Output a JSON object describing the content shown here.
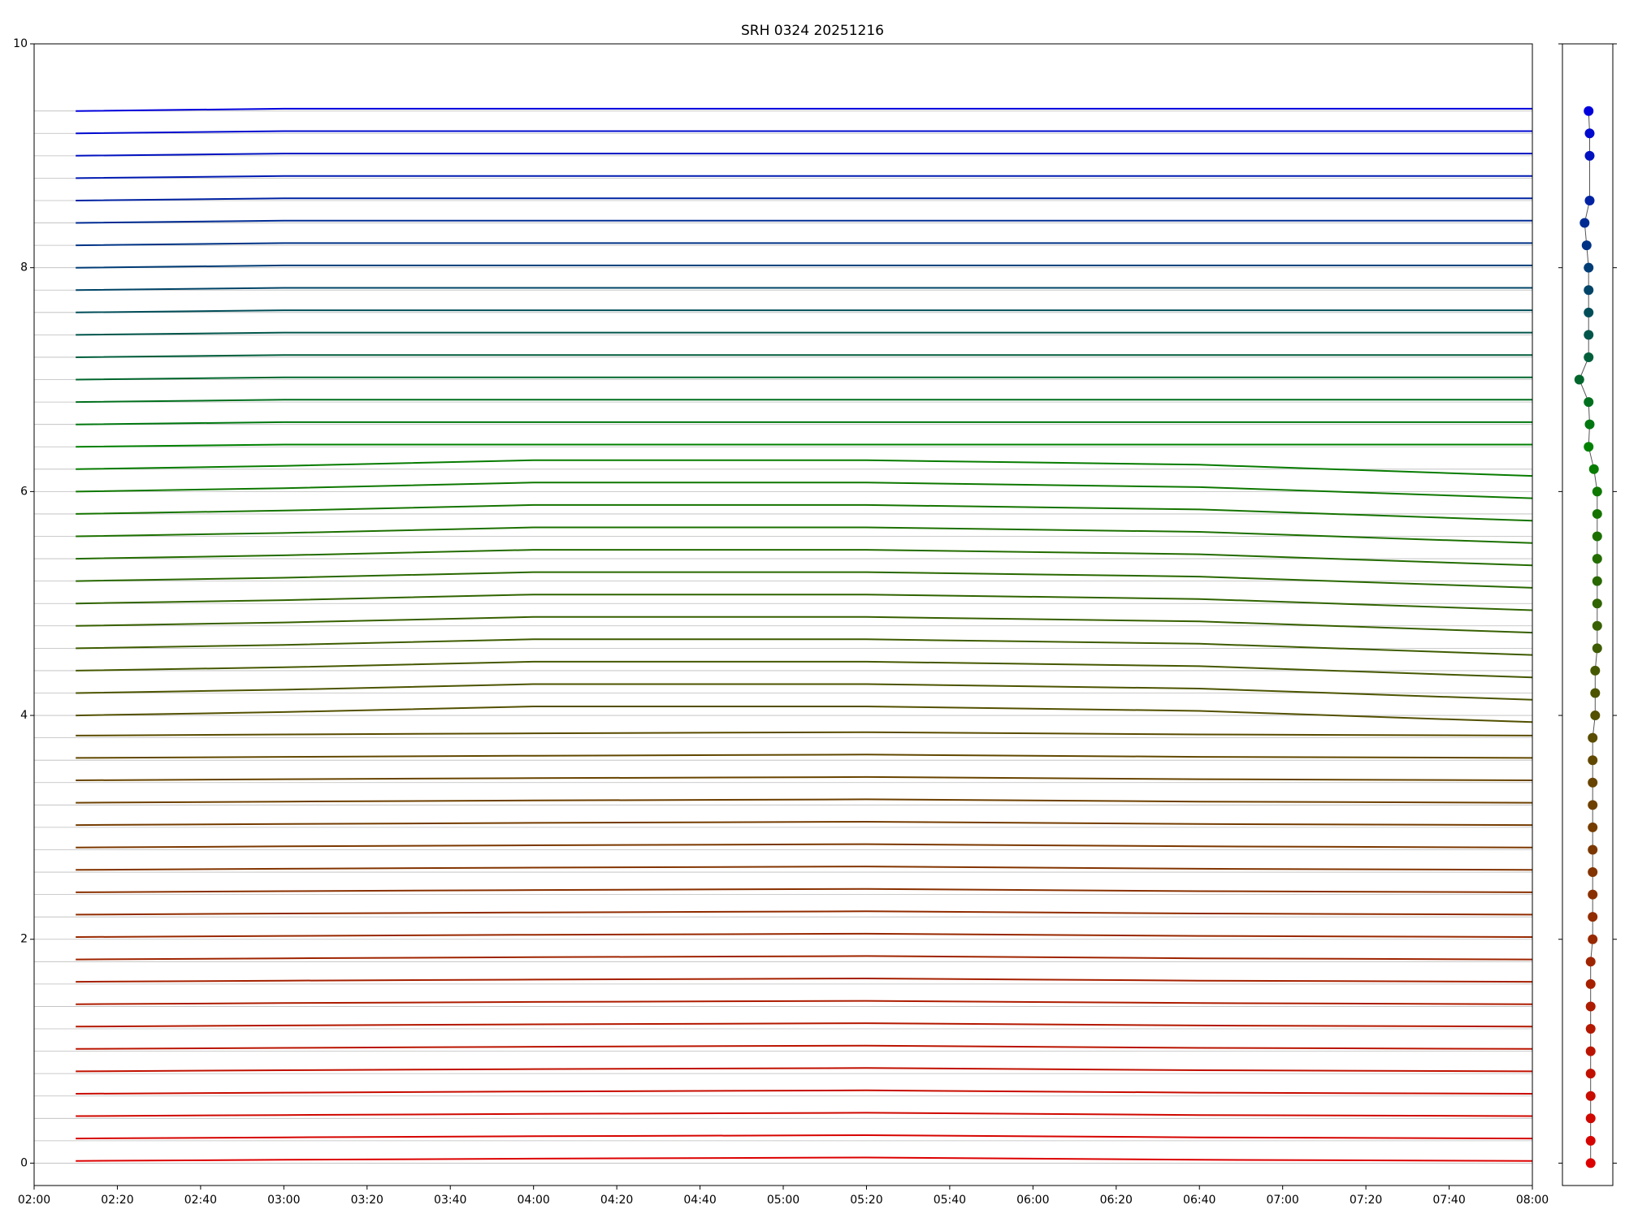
{
  "chart_data": [
    {
      "type": "line",
      "title": "SRH 0324 20251216",
      "xlim": [
        "02:00",
        "08:00"
      ],
      "xticks": [
        "02:00",
        "02:20",
        "02:40",
        "03:00",
        "03:20",
        "03:40",
        "04:00",
        "04:20",
        "04:40",
        "05:00",
        "05:20",
        "05:40",
        "06:00",
        "06:20",
        "06:40",
        "07:00",
        "07:20",
        "07:40",
        "08:00"
      ],
      "ylim": [
        -0.2,
        10
      ],
      "yticks": [
        0,
        2,
        4,
        6,
        8,
        10
      ],
      "baselines": [
        0,
        0.2,
        0.4,
        0.6,
        0.8,
        1,
        1.2,
        1.4,
        1.6,
        1.8,
        2,
        2.2,
        2.4,
        2.6,
        2.8,
        3,
        3.2,
        3.4,
        3.6,
        3.8,
        4,
        4.2,
        4.4,
        4.6,
        4.8,
        5,
        5.2,
        5.4,
        5.6,
        5.8,
        6,
        6.2,
        6.4,
        6.6,
        6.8,
        7,
        7.2,
        7.4,
        7.6,
        7.8,
        8,
        8.2,
        8.4,
        8.6,
        8.8,
        9,
        9.2,
        9.4
      ],
      "baseline_color": "#bbbbbb",
      "x": [
        "02:10",
        "03:00",
        "04:00",
        "05:20",
        "06:40",
        "08:00"
      ],
      "series": [
        {
          "color": "#dd0000",
          "values": [
            0.02,
            0.03,
            0.04,
            0.05,
            0.03,
            0.02
          ]
        },
        {
          "color": "#d60400",
          "values": [
            0.22,
            0.23,
            0.24,
            0.25,
            0.23,
            0.22
          ]
        },
        {
          "color": "#cf0800",
          "values": [
            0.42,
            0.43,
            0.44,
            0.45,
            0.43,
            0.42
          ]
        },
        {
          "color": "#c80c00",
          "values": [
            0.62,
            0.63,
            0.64,
            0.65,
            0.63,
            0.62
          ]
        },
        {
          "color": "#c11000",
          "values": [
            0.82,
            0.83,
            0.84,
            0.85,
            0.83,
            0.82
          ]
        },
        {
          "color": "#ba1400",
          "values": [
            1.02,
            1.03,
            1.04,
            1.05,
            1.03,
            1.02
          ]
        },
        {
          "color": "#b41800",
          "values": [
            1.22,
            1.23,
            1.24,
            1.25,
            1.23,
            1.22
          ]
        },
        {
          "color": "#ad1c00",
          "values": [
            1.42,
            1.43,
            1.44,
            1.45,
            1.43,
            1.42
          ]
        },
        {
          "color": "#a62000",
          "values": [
            1.62,
            1.63,
            1.64,
            1.65,
            1.63,
            1.62
          ]
        },
        {
          "color": "#9f2400",
          "values": [
            1.82,
            1.83,
            1.84,
            1.85,
            1.83,
            1.82
          ]
        },
        {
          "color": "#982800",
          "values": [
            2.02,
            2.03,
            2.04,
            2.05,
            2.03,
            2.02
          ]
        },
        {
          "color": "#912c00",
          "values": [
            2.22,
            2.23,
            2.24,
            2.25,
            2.23,
            2.22
          ]
        },
        {
          "color": "#8a3000",
          "values": [
            2.42,
            2.43,
            2.44,
            2.45,
            2.43,
            2.42
          ]
        },
        {
          "color": "#833400",
          "values": [
            2.62,
            2.63,
            2.64,
            2.65,
            2.63,
            2.62
          ]
        },
        {
          "color": "#7c3800",
          "values": [
            2.82,
            2.83,
            2.84,
            2.85,
            2.83,
            2.82
          ]
        },
        {
          "color": "#753c00",
          "values": [
            3.02,
            3.03,
            3.04,
            3.05,
            3.03,
            3.02
          ]
        },
        {
          "color": "#6e4000",
          "values": [
            3.22,
            3.23,
            3.24,
            3.25,
            3.23,
            3.22
          ]
        },
        {
          "color": "#684400",
          "values": [
            3.42,
            3.43,
            3.44,
            3.45,
            3.43,
            3.42
          ]
        },
        {
          "color": "#614800",
          "values": [
            3.62,
            3.63,
            3.64,
            3.65,
            3.63,
            3.62
          ]
        },
        {
          "color": "#5a4c00",
          "values": [
            3.82,
            3.83,
            3.84,
            3.85,
            3.83,
            3.82
          ]
        },
        {
          "color": "#535000",
          "values": [
            4.0,
            4.03,
            4.08,
            4.08,
            4.04,
            3.94
          ]
        },
        {
          "color": "#4c5400",
          "values": [
            4.2,
            4.23,
            4.28,
            4.28,
            4.24,
            4.14
          ]
        },
        {
          "color": "#455800",
          "values": [
            4.4,
            4.43,
            4.48,
            4.48,
            4.44,
            4.34
          ]
        },
        {
          "color": "#3e5c00",
          "values": [
            4.6,
            4.63,
            4.68,
            4.68,
            4.64,
            4.54
          ]
        },
        {
          "color": "#376000",
          "values": [
            4.8,
            4.83,
            4.88,
            4.88,
            4.84,
            4.74
          ]
        },
        {
          "color": "#306400",
          "values": [
            5.0,
            5.03,
            5.08,
            5.08,
            5.04,
            4.94
          ]
        },
        {
          "color": "#296800",
          "values": [
            5.2,
            5.23,
            5.28,
            5.28,
            5.24,
            5.14
          ]
        },
        {
          "color": "#236c00",
          "values": [
            5.4,
            5.43,
            5.48,
            5.48,
            5.44,
            5.34
          ]
        },
        {
          "color": "#1c7000",
          "values": [
            5.6,
            5.63,
            5.68,
            5.68,
            5.64,
            5.54
          ]
        },
        {
          "color": "#157400",
          "values": [
            5.8,
            5.83,
            5.88,
            5.88,
            5.84,
            5.74
          ]
        },
        {
          "color": "#0e7800",
          "values": [
            6.0,
            6.03,
            6.08,
            6.08,
            6.04,
            5.94
          ]
        },
        {
          "color": "#077c00",
          "values": [
            6.2,
            6.23,
            6.28,
            6.28,
            6.24,
            6.14
          ]
        },
        {
          "color": "#008000",
          "values": [
            6.4,
            6.42,
            6.42,
            6.42,
            6.42,
            6.42
          ]
        },
        {
          "color": "#00770f",
          "values": [
            6.6,
            6.62,
            6.62,
            6.62,
            6.62,
            6.62
          ]
        },
        {
          "color": "#006f1d",
          "values": [
            6.8,
            6.82,
            6.82,
            6.82,
            6.82,
            6.82
          ]
        },
        {
          "color": "#00662c",
          "values": [
            7.0,
            7.02,
            7.02,
            7.02,
            7.02,
            7.02
          ]
        },
        {
          "color": "#005e3b",
          "values": [
            7.2,
            7.22,
            7.22,
            7.22,
            7.22,
            7.22
          ]
        },
        {
          "color": "#00554a",
          "values": [
            7.4,
            7.42,
            7.42,
            7.42,
            7.42,
            7.42
          ]
        },
        {
          "color": "#004d58",
          "values": [
            7.6,
            7.62,
            7.62,
            7.62,
            7.62,
            7.62
          ]
        },
        {
          "color": "#004467",
          "values": [
            7.8,
            7.82,
            7.82,
            7.82,
            7.82,
            7.82
          ]
        },
        {
          "color": "#003c76",
          "values": [
            8.0,
            8.02,
            8.02,
            8.02,
            8.02,
            8.02
          ]
        },
        {
          "color": "#003385",
          "values": [
            8.2,
            8.22,
            8.22,
            8.22,
            8.22,
            8.22
          ]
        },
        {
          "color": "#002b93",
          "values": [
            8.4,
            8.42,
            8.42,
            8.42,
            8.42,
            8.42
          ]
        },
        {
          "color": "#0022a2",
          "values": [
            8.6,
            8.62,
            8.62,
            8.62,
            8.62,
            8.62
          ]
        },
        {
          "color": "#001ab1",
          "values": [
            8.8,
            8.82,
            8.82,
            8.82,
            8.82,
            8.82
          ]
        },
        {
          "color": "#0011c0",
          "values": [
            9.0,
            9.02,
            9.02,
            9.02,
            9.02,
            9.02
          ]
        },
        {
          "color": "#0009ce",
          "values": [
            9.2,
            9.22,
            9.22,
            9.22,
            9.22,
            9.22
          ]
        },
        {
          "color": "#0000dd",
          "values": [
            9.4,
            9.42,
            9.42,
            9.42,
            9.42,
            9.42
          ]
        }
      ]
    },
    {
      "type": "scatter",
      "xlim": [
        -1,
        1
      ],
      "ylim": [
        -0.2,
        10
      ],
      "yticks": [
        0,
        2,
        4,
        6,
        8,
        10
      ],
      "line_color": "#555555",
      "x": [
        0.12,
        0.12,
        0.12,
        0.12,
        0.12,
        0.12,
        0.12,
        0.12,
        0.12,
        0.12,
        0.2,
        0.2,
        0.2,
        0.2,
        0.2,
        0.2,
        0.2,
        0.2,
        0.2,
        0.2,
        0.3,
        0.3,
        0.3,
        0.38,
        0.38,
        0.38,
        0.38,
        0.38,
        0.38,
        0.38,
        0.38,
        0.25,
        0.04,
        0.08,
        0.04,
        -0.33,
        0.04,
        0.04,
        0.04,
        0.04,
        0.04,
        -0.04,
        -0.12,
        0.08,
        0.08,
        0.08,
        0.04
      ],
      "y": [
        0,
        0.2,
        0.4,
        0.6,
        0.8,
        1,
        1.2,
        1.4,
        1.6,
        1.8,
        2,
        2.2,
        2.4,
        2.6,
        2.8,
        3,
        3.2,
        3.4,
        3.6,
        3.8,
        4,
        4.2,
        4.4,
        4.6,
        4.8,
        5,
        5.2,
        5.4,
        5.6,
        5.8,
        6,
        6.2,
        6.4,
        6.6,
        6.8,
        7,
        7.2,
        7.4,
        7.6,
        7.8,
        8,
        8.2,
        8.4,
        8.6,
        9,
        9.2,
        9.4
      ],
      "colors": [
        "#dd0000",
        "#d60400",
        "#cf0800",
        "#c80c00",
        "#c11000",
        "#ba1400",
        "#b41800",
        "#ad1c00",
        "#a62000",
        "#9f2400",
        "#982800",
        "#912c00",
        "#8a3000",
        "#833400",
        "#7c3800",
        "#753c00",
        "#6e4000",
        "#684400",
        "#614800",
        "#5a4c00",
        "#535000",
        "#4c5400",
        "#455800",
        "#3e5c00",
        "#376000",
        "#306400",
        "#296800",
        "#236c00",
        "#1c7000",
        "#157400",
        "#0e7800",
        "#077c00",
        "#008000",
        "#00770f",
        "#006f1d",
        "#00662c",
        "#005e3b",
        "#00554a",
        "#004d58",
        "#004467",
        "#003c76",
        "#003385",
        "#002b93",
        "#0022a2",
        "#0011c0",
        "#0009ce",
        "#0000dd"
      ]
    }
  ]
}
